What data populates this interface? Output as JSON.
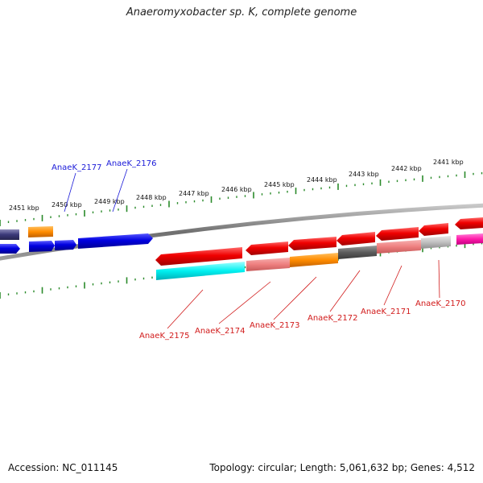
{
  "title": "Anaeromyxobacter sp. K, complete genome",
  "footer": {
    "accession": "Accession: NC_011145",
    "stats": "Topology: circular; Length: 5,061,632 bp; Genes: 4,512"
  },
  "kbp_labels": [
    "2451 kbp",
    "2450 kbp",
    "2449 kbp",
    "2448 kbp",
    "2447 kbp",
    "2446 kbp",
    "2445 kbp",
    "2444 kbp",
    "2443 kbp",
    "2442 kbp",
    "2441 kbp"
  ],
  "gene_labels": {
    "top": [
      "AnaeK_2177",
      "AnaeK_2176"
    ],
    "bottom": [
      "AnaeK_2175",
      "AnaeK_2174",
      "AnaeK_2173",
      "AnaeK_2172",
      "AnaeK_2171",
      "AnaeK_2170"
    ]
  },
  "colors": {
    "label_top": "#1a1ad8",
    "label_bottom": "#d11a1a",
    "tick": "#2a8a2a",
    "backbone": "#7a7a7a"
  }
}
